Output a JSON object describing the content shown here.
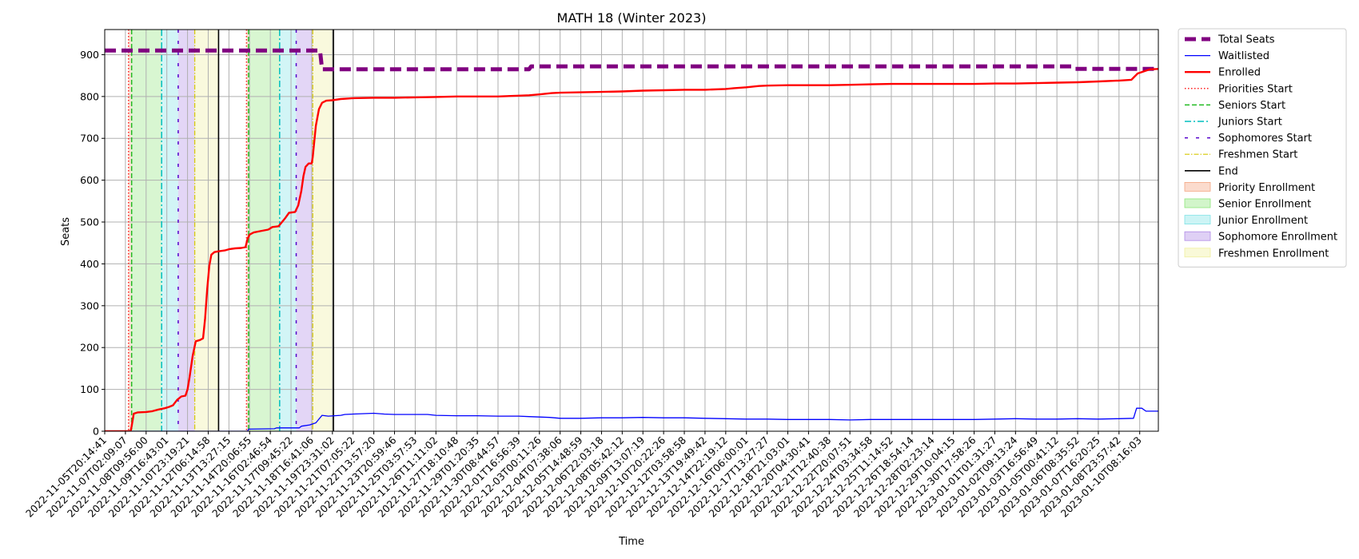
{
  "chart_data": {
    "type": "line",
    "title": "MATH 18 (Winter 2023)",
    "xlabel": "Time",
    "ylabel": "Seats",
    "ylim": [
      0,
      960
    ],
    "yticks": [
      0,
      100,
      200,
      300,
      400,
      500,
      600,
      700,
      800,
      900
    ],
    "grid": true,
    "legend_position": "outside-top-right",
    "x_tick_labels": [
      "2022-11-05T20:14:41",
      "2022-11-07T02:09:07",
      "2022-11-08T09:56:00",
      "2022-11-09T16:43:01",
      "2022-11-10T23:19:21",
      "2022-11-12T06:14:58",
      "2022-11-13T13:27:15",
      "2022-11-14T20:06:55",
      "2022-11-16T02:46:54",
      "2022-11-17T09:45:22",
      "2022-11-18T16:41:06",
      "2022-11-19T23:31:02",
      "2022-11-21T07:05:22",
      "2022-11-22T13:57:20",
      "2022-11-23T20:59:46",
      "2022-11-25T03:57:53",
      "2022-11-26T11:11:02",
      "2022-11-27T18:10:48",
      "2022-11-29T01:20:35",
      "2022-11-30T08:44:57",
      "2022-12-01T16:56:39",
      "2022-12-03T00:11:26",
      "2022-12-04T07:38:06",
      "2022-12-05T14:48:59",
      "2022-12-06T22:03:18",
      "2022-12-08T05:42:12",
      "2022-12-09T13:07:19",
      "2022-12-10T20:22:26",
      "2022-12-12T03:58:58",
      "2022-12-13T19:49:42",
      "2022-12-14T22:19:12",
      "2022-12-16T06:00:01",
      "2022-12-17T13:27:27",
      "2022-12-18T21:03:01",
      "2022-12-20T04:30:41",
      "2022-12-21T12:40:38",
      "2022-12-22T20:07:51",
      "2022-12-24T03:34:58",
      "2022-12-25T11:14:52",
      "2022-12-26T18:54:14",
      "2022-12-28T02:23:14",
      "2022-12-29T10:04:15",
      "2022-12-30T17:58:26",
      "2023-01-01T01:31:27",
      "2023-01-02T09:13:24",
      "2023-01-03T16:56:49",
      "2023-01-05T00:41:12",
      "2023-01-06T08:35:52",
      "2023-01-07T16:20:25",
      "2023-01-08T23:57:42",
      "2023-01-10T08:16:03"
    ],
    "series": [
      {
        "name": "Total Seats",
        "color": "#800080",
        "style": "dashed-thick",
        "points": [
          [
            0,
            910
          ],
          [
            10.4,
            910
          ],
          [
            10.5,
            865
          ],
          [
            20.5,
            865
          ],
          [
            20.6,
            872
          ],
          [
            46.8,
            872
          ],
          [
            46.9,
            866
          ],
          [
            50.9,
            866
          ]
        ]
      },
      {
        "name": "Waitlisted",
        "color": "#0000ff",
        "style": "solid-thin",
        "points": [
          [
            0,
            0
          ],
          [
            6.9,
            0
          ],
          [
            6.95,
            5
          ],
          [
            8.2,
            6
          ],
          [
            8.3,
            8
          ],
          [
            9.4,
            8
          ],
          [
            9.5,
            12
          ],
          [
            9.9,
            15
          ],
          [
            10.2,
            20
          ],
          [
            10.5,
            38
          ],
          [
            10.8,
            36
          ],
          [
            11.4,
            38
          ],
          [
            11.6,
            40
          ],
          [
            12.0,
            41
          ],
          [
            12.5,
            42
          ],
          [
            13.0,
            43
          ],
          [
            13.5,
            41
          ],
          [
            14.0,
            40
          ],
          [
            15.0,
            40
          ],
          [
            15.6,
            40
          ],
          [
            16.0,
            38
          ],
          [
            17.0,
            37
          ],
          [
            18.0,
            37
          ],
          [
            19.0,
            36
          ],
          [
            20.0,
            36
          ],
          [
            20.5,
            35
          ],
          [
            21.5,
            33
          ],
          [
            22.0,
            31
          ],
          [
            23.0,
            31
          ],
          [
            24.0,
            32
          ],
          [
            25.0,
            32
          ],
          [
            26.0,
            33
          ],
          [
            27.0,
            32
          ],
          [
            28.0,
            32
          ],
          [
            29.0,
            31
          ],
          [
            30.0,
            30
          ],
          [
            31.0,
            29
          ],
          [
            32.0,
            29
          ],
          [
            33.0,
            28
          ],
          [
            34.0,
            28
          ],
          [
            35.0,
            28
          ],
          [
            36.0,
            27
          ],
          [
            37.0,
            28
          ],
          [
            38.0,
            28
          ],
          [
            39.0,
            28
          ],
          [
            40.0,
            28
          ],
          [
            41.0,
            28
          ],
          [
            42.0,
            28
          ],
          [
            43.0,
            29
          ],
          [
            44.0,
            30
          ],
          [
            45.0,
            29
          ],
          [
            46.0,
            29
          ],
          [
            47.0,
            30
          ],
          [
            48.0,
            29
          ],
          [
            49.0,
            30
          ],
          [
            49.7,
            31
          ],
          [
            49.85,
            55
          ],
          [
            50.1,
            55
          ],
          [
            50.3,
            48
          ],
          [
            50.9,
            48
          ]
        ]
      },
      {
        "name": "Enrolled",
        "color": "#ff0000",
        "style": "solid-thick",
        "points": [
          [
            0,
            0
          ],
          [
            1.25,
            0
          ],
          [
            1.3,
            12
          ],
          [
            1.4,
            42
          ],
          [
            1.6,
            45
          ],
          [
            2.0,
            46
          ],
          [
            2.3,
            48
          ],
          [
            2.6,
            52
          ],
          [
            2.9,
            55
          ],
          [
            3.1,
            58
          ],
          [
            3.3,
            62
          ],
          [
            3.5,
            75
          ],
          [
            3.7,
            83
          ],
          [
            3.9,
            85
          ],
          [
            4.0,
            100
          ],
          [
            4.1,
            130
          ],
          [
            4.25,
            180
          ],
          [
            4.4,
            215
          ],
          [
            4.6,
            218
          ],
          [
            4.75,
            222
          ],
          [
            4.85,
            270
          ],
          [
            4.95,
            340
          ],
          [
            5.05,
            395
          ],
          [
            5.15,
            422
          ],
          [
            5.3,
            428
          ],
          [
            5.5,
            430
          ],
          [
            5.8,
            432
          ],
          [
            6.0,
            435
          ],
          [
            6.3,
            437
          ],
          [
            6.6,
            438
          ],
          [
            6.8,
            440
          ],
          [
            6.9,
            460
          ],
          [
            7.0,
            470
          ],
          [
            7.2,
            475
          ],
          [
            7.5,
            478
          ],
          [
            7.9,
            482
          ],
          [
            8.1,
            488
          ],
          [
            8.4,
            490
          ],
          [
            8.7,
            508
          ],
          [
            8.9,
            522
          ],
          [
            9.2,
            524
          ],
          [
            9.35,
            540
          ],
          [
            9.5,
            575
          ],
          [
            9.6,
            610
          ],
          [
            9.7,
            632
          ],
          [
            9.85,
            640
          ],
          [
            10.0,
            640
          ],
          [
            10.05,
            655
          ],
          [
            10.2,
            730
          ],
          [
            10.35,
            770
          ],
          [
            10.5,
            785
          ],
          [
            10.7,
            790
          ],
          [
            11.0,
            791
          ],
          [
            11.4,
            794
          ],
          [
            12.0,
            796
          ],
          [
            13.0,
            797
          ],
          [
            14.0,
            797
          ],
          [
            15.0,
            798
          ],
          [
            16.0,
            799
          ],
          [
            17.0,
            800
          ],
          [
            18.0,
            800
          ],
          [
            19.0,
            800
          ],
          [
            20.0,
            802
          ],
          [
            20.5,
            803
          ],
          [
            21.0,
            805
          ],
          [
            21.6,
            808
          ],
          [
            22.0,
            809
          ],
          [
            23.0,
            810
          ],
          [
            24.0,
            811
          ],
          [
            25.0,
            812
          ],
          [
            26.0,
            814
          ],
          [
            27.0,
            815
          ],
          [
            28.0,
            816
          ],
          [
            29.0,
            816
          ],
          [
            30.0,
            818
          ],
          [
            30.4,
            820
          ],
          [
            31.0,
            822
          ],
          [
            31.6,
            825
          ],
          [
            32.0,
            826
          ],
          [
            33.0,
            827
          ],
          [
            34.0,
            827
          ],
          [
            35.0,
            827
          ],
          [
            36.0,
            828
          ],
          [
            37.0,
            829
          ],
          [
            38.0,
            830
          ],
          [
            39.0,
            830
          ],
          [
            40.0,
            830
          ],
          [
            41.0,
            830
          ],
          [
            42.0,
            830
          ],
          [
            43.0,
            831
          ],
          [
            44.0,
            831
          ],
          [
            45.0,
            832
          ],
          [
            46.0,
            833
          ],
          [
            47.0,
            834
          ],
          [
            48.0,
            836
          ],
          [
            49.0,
            838
          ],
          [
            49.6,
            840
          ],
          [
            49.9,
            855
          ],
          [
            50.2,
            860
          ],
          [
            50.5,
            865
          ],
          [
            50.9,
            866
          ]
        ]
      }
    ],
    "vertical_lines": [
      {
        "name": "Priorities Start",
        "color": "#ff2222",
        "style": "dotted",
        "x": [
          1.15,
          6.85
        ]
      },
      {
        "name": "Seniors Start",
        "color": "#22bb22",
        "style": "dashed",
        "x": [
          1.3,
          6.95
        ]
      },
      {
        "name": "Juniors Start",
        "color": "#00bfbf",
        "style": "dashdot",
        "x": [
          2.75,
          8.45
        ]
      },
      {
        "name": "Sophomores Start",
        "color": "#5500cc",
        "style": "loosedash",
        "x": [
          3.55,
          9.25
        ]
      },
      {
        "name": "Freshmen Start",
        "color": "#d6c800",
        "style": "dashdot-thin",
        "x": [
          4.35,
          10.05
        ]
      },
      {
        "name": "End",
        "color": "#000000",
        "style": "solid",
        "x": [
          5.5,
          11.05
        ]
      }
    ],
    "shaded_regions": [
      {
        "name": "Priority Enrollment",
        "color": "#f4a582",
        "ranges": [
          [
            1.15,
            1.3
          ],
          [
            6.85,
            6.95
          ]
        ]
      },
      {
        "name": "Senior Enrollment",
        "color": "#8ee67a",
        "ranges": [
          [
            1.3,
            2.75
          ],
          [
            6.95,
            8.45
          ]
        ]
      },
      {
        "name": "Junior Enrollment",
        "color": "#7fe3e6",
        "ranges": [
          [
            2.75,
            3.55
          ],
          [
            8.45,
            9.25
          ]
        ]
      },
      {
        "name": "Sophomore Enrollment",
        "color": "#b08ae6",
        "ranges": [
          [
            3.55,
            4.35
          ],
          [
            9.25,
            10.05
          ]
        ]
      },
      {
        "name": "Freshmen Enrollment",
        "color": "#efef9e",
        "ranges": [
          [
            4.35,
            5.5
          ],
          [
            10.05,
            11.05
          ]
        ]
      }
    ],
    "legend": [
      {
        "label": "Total Seats",
        "kind": "line",
        "color": "#800080",
        "style": "dashed-thick"
      },
      {
        "label": "Waitlisted",
        "kind": "line",
        "color": "#0000ff",
        "style": "solid-thin"
      },
      {
        "label": "Enrolled",
        "kind": "line",
        "color": "#ff0000",
        "style": "solid-thick"
      },
      {
        "label": "Priorities Start",
        "kind": "line",
        "color": "#ff2222",
        "style": "dotted"
      },
      {
        "label": "Seniors Start",
        "kind": "line",
        "color": "#22bb22",
        "style": "dashed"
      },
      {
        "label": "Juniors Start",
        "kind": "line",
        "color": "#00bfbf",
        "style": "dashdot"
      },
      {
        "label": "Sophomores Start",
        "kind": "line",
        "color": "#5500cc",
        "style": "loosedash"
      },
      {
        "label": "Freshmen Start",
        "kind": "line",
        "color": "#d6c800",
        "style": "dashdot-thin"
      },
      {
        "label": "End",
        "kind": "line",
        "color": "#000000",
        "style": "solid"
      },
      {
        "label": "Priority Enrollment",
        "kind": "patch",
        "color": "#f4a582"
      },
      {
        "label": "Senior Enrollment",
        "kind": "patch",
        "color": "#8ee67a"
      },
      {
        "label": "Junior Enrollment",
        "kind": "patch",
        "color": "#7fe3e6"
      },
      {
        "label": "Sophomore Enrollment",
        "kind": "patch",
        "color": "#b08ae6"
      },
      {
        "label": "Freshmen Enrollment",
        "kind": "patch",
        "color": "#efef9e"
      }
    ]
  }
}
